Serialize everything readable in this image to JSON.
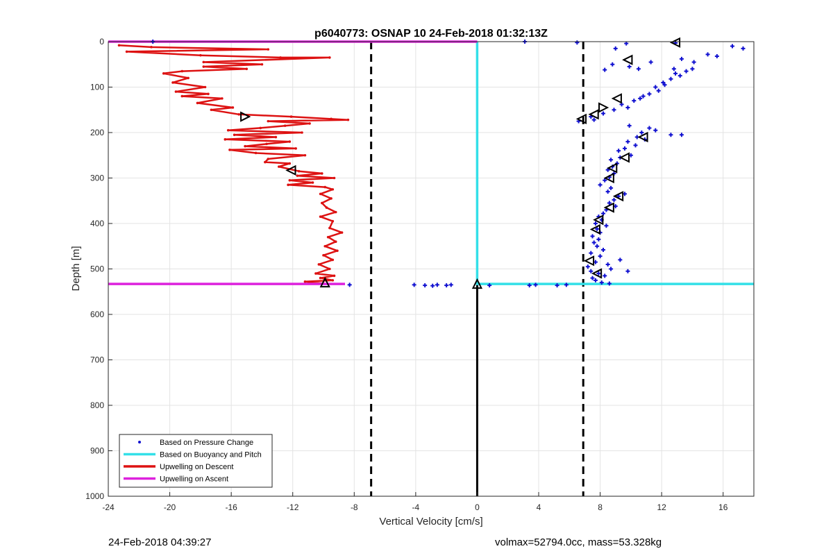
{
  "chart_data": {
    "type": "scatter",
    "title": "p6040773: OSNAP 10 24-Feb-2018 01:32:13Z",
    "xlabel": "Vertical Velocity [cm/s]",
    "ylabel": "Depth [m]",
    "xlim": [
      -24,
      18
    ],
    "ylim": [
      1000,
      0
    ],
    "y_reversed": true,
    "grid": true,
    "legend_position": "lower-left",
    "xticks": [
      -24,
      -20,
      -16,
      -12,
      -8,
      -4,
      0,
      4,
      8,
      12,
      16
    ],
    "xtick_labels": [
      "-24",
      "-20",
      "-16",
      "-12",
      "-8",
      "-4",
      "0",
      "4",
      "8",
      "12",
      "16"
    ],
    "yticks": [
      0,
      100,
      200,
      300,
      400,
      500,
      600,
      700,
      800,
      900,
      1000
    ],
    "ytick_labels": [
      "0",
      "100",
      "200",
      "300",
      "400",
      "500",
      "600",
      "700",
      "800",
      "900",
      "1000"
    ],
    "colors": {
      "pressure": "#1010d0",
      "buoyancy": "#33e0e8",
      "descent": "#dd1111",
      "ascent": "#dd22dd",
      "reference": "#000000",
      "grid": "#e3e3e3"
    },
    "legend": [
      {
        "label": "Based on Pressure Change",
        "style": "dot",
        "color": "#1010d0"
      },
      {
        "label": "Based on Buoyancy and Pitch",
        "style": "line",
        "color": "#33e0e8"
      },
      {
        "label": "Upwelling on Descent",
        "style": "line",
        "color": "#dd1111"
      },
      {
        "label": "Upwelling on Ascent",
        "style": "line",
        "color": "#dd22dd"
      }
    ],
    "reference_lines": {
      "dashed_x": [
        -6.9,
        6.9
      ],
      "zero_line_depth_range": [
        535,
        1000
      ]
    },
    "series": [
      {
        "name": "Based on Pressure Change",
        "style": "points",
        "points": [
          [
            12.9,
            3
          ],
          [
            16.6,
            10
          ],
          [
            17.3,
            15
          ],
          [
            15,
            28
          ],
          [
            15.6,
            32
          ],
          [
            13.3,
            38
          ],
          [
            14.1,
            45
          ],
          [
            14,
            60
          ],
          [
            13.6,
            65
          ],
          [
            12.9,
            70
          ],
          [
            13.2,
            75
          ],
          [
            12.6,
            82
          ],
          [
            12.1,
            90
          ],
          [
            12.2,
            95
          ],
          [
            11.6,
            100
          ],
          [
            11.8,
            108
          ],
          [
            11.2,
            115
          ],
          [
            10.8,
            120
          ],
          [
            10.6,
            125
          ],
          [
            10.2,
            130
          ],
          [
            9.4,
            138
          ],
          [
            9.8,
            145
          ],
          [
            8.9,
            150
          ],
          [
            8.2,
            158
          ],
          [
            7.4,
            165
          ],
          [
            7.6,
            172
          ],
          [
            6.6,
            175
          ],
          [
            9.9,
            185
          ],
          [
            11.2,
            190
          ],
          [
            11.6,
            195
          ],
          [
            10.7,
            200
          ],
          [
            12.6,
            205
          ],
          [
            13.3,
            205
          ],
          [
            10.4,
            210
          ],
          [
            10.9,
            215
          ],
          [
            9.8,
            220
          ],
          [
            10.3,
            228
          ],
          [
            9.6,
            235
          ],
          [
            9.2,
            240
          ],
          [
            10,
            250
          ],
          [
            9.3,
            255
          ],
          [
            8.7,
            260
          ],
          [
            9.1,
            268
          ],
          [
            8.8,
            275
          ],
          [
            8.5,
            282
          ],
          [
            8.9,
            290
          ],
          [
            8.6,
            298
          ],
          [
            8.3,
            305
          ],
          [
            8,
            315
          ],
          [
            8.7,
            322
          ],
          [
            8.5,
            330
          ],
          [
            9.6,
            335
          ],
          [
            9.2,
            340
          ],
          [
            8.9,
            348
          ],
          [
            8.6,
            355
          ],
          [
            9,
            362
          ],
          [
            8.4,
            370
          ],
          [
            8.2,
            378
          ],
          [
            7.9,
            385
          ],
          [
            8.1,
            392
          ],
          [
            7.7,
            400
          ],
          [
            8.4,
            405
          ],
          [
            7.8,
            412
          ],
          [
            8,
            420
          ],
          [
            7.5,
            428
          ],
          [
            7.9,
            435
          ],
          [
            7.6,
            442
          ],
          [
            7.8,
            450
          ],
          [
            8.2,
            458
          ],
          [
            7.4,
            465
          ],
          [
            8,
            472
          ],
          [
            9.3,
            480
          ],
          [
            7.7,
            485
          ],
          [
            8.5,
            490
          ],
          [
            7.2,
            495
          ],
          [
            8.7,
            500
          ],
          [
            7.4,
            505
          ],
          [
            9.8,
            505
          ],
          [
            7.9,
            510
          ],
          [
            8.3,
            515
          ],
          [
            7.5,
            520
          ],
          [
            7.7,
            525
          ],
          [
            8.1,
            530
          ],
          [
            8.6,
            532
          ],
          [
            -4.1,
            535
          ],
          [
            -3.4,
            536
          ],
          [
            -2.6,
            535
          ],
          [
            -2,
            536
          ],
          [
            -2.9,
            537
          ],
          [
            -1.7,
            535
          ],
          [
            -8.3,
            535
          ],
          [
            0.8,
            536
          ],
          [
            3.4,
            536
          ],
          [
            3.8,
            535
          ],
          [
            5.2,
            536
          ],
          [
            5.8,
            535
          ],
          [
            3.1,
            0
          ],
          [
            6.5,
            2
          ],
          [
            -21.1,
            0
          ],
          [
            9.7,
            4
          ],
          [
            9,
            15
          ],
          [
            8.8,
            50
          ],
          [
            9.9,
            55
          ],
          [
            8.3,
            62
          ],
          [
            11.3,
            45
          ],
          [
            10.5,
            60
          ],
          [
            12.8,
            60
          ]
        ]
      },
      {
        "name": "Based on Buoyancy and Pitch",
        "style": "line",
        "points": [
          [
            0,
            0
          ],
          [
            0,
            100
          ],
          [
            0,
            200
          ],
          [
            0,
            300
          ],
          [
            0,
            400
          ],
          [
            0,
            500
          ],
          [
            0,
            533
          ],
          [
            18,
            533
          ]
        ]
      },
      {
        "name": "Upwelling on Descent",
        "style": "line",
        "points": [
          [
            -23.3,
            8
          ],
          [
            -21.2,
            12
          ],
          [
            -13.6,
            17
          ],
          [
            -22.8,
            22
          ],
          [
            -18,
            30
          ],
          [
            -12.8,
            35
          ],
          [
            -9.6,
            35
          ],
          [
            -17.8,
            45
          ],
          [
            -14,
            50
          ],
          [
            -17.8,
            55
          ],
          [
            -15,
            60
          ],
          [
            -19.2,
            65
          ],
          [
            -20.4,
            70
          ],
          [
            -18.8,
            80
          ],
          [
            -19.8,
            90
          ],
          [
            -17.7,
            100
          ],
          [
            -19.6,
            110
          ],
          [
            -17.5,
            115
          ],
          [
            -19.2,
            120
          ],
          [
            -16.6,
            125
          ],
          [
            -18.2,
            135
          ],
          [
            -15.9,
            145
          ],
          [
            -17.3,
            150
          ],
          [
            -15.5,
            160
          ],
          [
            -12.1,
            165
          ],
          [
            -9.5,
            170
          ],
          [
            -8.4,
            172
          ],
          [
            -13.6,
            175
          ],
          [
            -10.9,
            180
          ],
          [
            -12.5,
            185
          ],
          [
            -14.1,
            190
          ],
          [
            -16.2,
            195
          ],
          [
            -11.4,
            200
          ],
          [
            -15.8,
            205
          ],
          [
            -13.1,
            210
          ],
          [
            -16.4,
            215
          ],
          [
            -12.2,
            220
          ],
          [
            -13.7,
            225
          ],
          [
            -15.1,
            230
          ],
          [
            -11.8,
            235
          ],
          [
            -16.1,
            238
          ],
          [
            -14.4,
            245
          ],
          [
            -11.2,
            250
          ],
          [
            -13.6,
            258
          ],
          [
            -13.8,
            265
          ],
          [
            -12.2,
            268
          ],
          [
            -12.9,
            275
          ],
          [
            -11.6,
            285
          ],
          [
            -10.1,
            290
          ],
          [
            -11.7,
            295
          ],
          [
            -9.3,
            300
          ],
          [
            -12.2,
            305
          ],
          [
            -10.7,
            310
          ],
          [
            -12.3,
            315
          ],
          [
            -9.9,
            320
          ],
          [
            -9.4,
            325
          ],
          [
            -10.2,
            335
          ],
          [
            -9.5,
            345
          ],
          [
            -10.1,
            355
          ],
          [
            -9.8,
            365
          ],
          [
            -9.2,
            375
          ],
          [
            -10.2,
            385
          ],
          [
            -9.4,
            395
          ],
          [
            -9.6,
            410
          ],
          [
            -8.8,
            420
          ],
          [
            -9.7,
            430
          ],
          [
            -9.2,
            440
          ],
          [
            -9.9,
            450
          ],
          [
            -9.1,
            460
          ],
          [
            -10,
            470
          ],
          [
            -9.4,
            480
          ],
          [
            -10.3,
            490
          ],
          [
            -9.6,
            500
          ],
          [
            -10.5,
            510
          ],
          [
            -9.3,
            515
          ],
          [
            -10.2,
            520
          ],
          [
            -9.4,
            525
          ],
          [
            -11.2,
            528
          ],
          [
            -10,
            532
          ]
        ]
      },
      {
        "name": "Upwelling on Ascent",
        "style": "line",
        "points": [
          [
            -24,
            533
          ],
          [
            -8.6,
            533
          ],
          [
            -8.6,
            533
          ],
          [
            -24,
            0
          ],
          [
            -14,
            0
          ],
          [
            -8,
            0
          ],
          [
            0,
            0
          ]
        ]
      }
    ],
    "markers": [
      {
        "shape": "triangle-left",
        "x": 12.9,
        "y": 2
      },
      {
        "shape": "triangle-left",
        "x": 9.8,
        "y": 40
      },
      {
        "shape": "triangle-left",
        "x": 9.1,
        "y": 125
      },
      {
        "shape": "triangle-right",
        "x": 8.2,
        "y": 145
      },
      {
        "shape": "triangle-left",
        "x": 7.6,
        "y": 160
      },
      {
        "shape": "triangle-left",
        "x": 6.8,
        "y": 170
      },
      {
        "shape": "triangle-right",
        "x": -15.1,
        "y": 165
      },
      {
        "shape": "triangle-left",
        "x": 10.8,
        "y": 210
      },
      {
        "shape": "triangle-left",
        "x": -12.1,
        "y": 283
      },
      {
        "shape": "triangle-left",
        "x": 9.6,
        "y": 255
      },
      {
        "shape": "triangle-left",
        "x": 8.8,
        "y": 278
      },
      {
        "shape": "triangle-left",
        "x": 8.6,
        "y": 300
      },
      {
        "shape": "triangle-left",
        "x": 9.2,
        "y": 340
      },
      {
        "shape": "triangle-left",
        "x": 8.6,
        "y": 365
      },
      {
        "shape": "triangle-left",
        "x": 7.9,
        "y": 392
      },
      {
        "shape": "triangle-left",
        "x": 7.7,
        "y": 413
      },
      {
        "shape": "triangle-left",
        "x": 7.3,
        "y": 482
      },
      {
        "shape": "triangle-left",
        "x": 7.8,
        "y": 510
      },
      {
        "shape": "triangle-up",
        "x": 0,
        "y": 533
      },
      {
        "shape": "triangle-up",
        "x": -9.9,
        "y": 530
      }
    ]
  },
  "footer": {
    "timestamp": "24-Feb-2018 04:39:27",
    "summary": "volmax=52794.0cc, mass=53.328kg"
  }
}
